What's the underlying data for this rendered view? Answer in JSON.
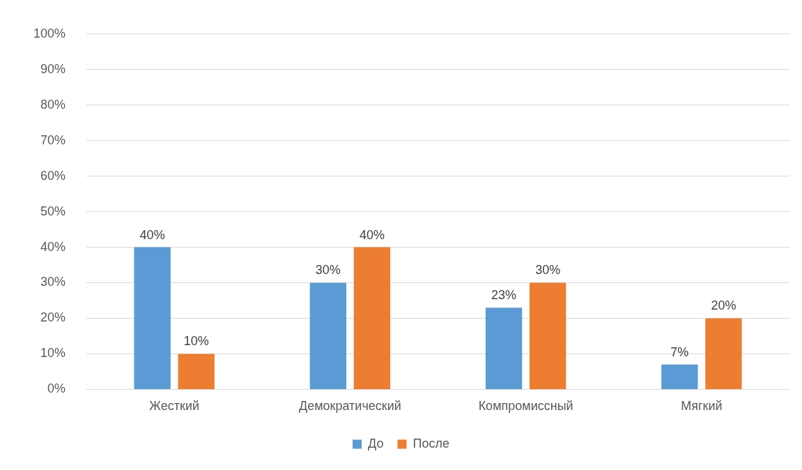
{
  "chart_data": {
    "type": "bar",
    "categories": [
      "Жесткий",
      "Демократический",
      "Компромиссный",
      "Мягкий"
    ],
    "series": [
      {
        "name": "До",
        "color": "#5b9bd5",
        "values": [
          40,
          30,
          23,
          7
        ],
        "value_labels": [
          "40%",
          "30%",
          "23%",
          "7%"
        ]
      },
      {
        "name": "После",
        "color": "#ed7d31",
        "values": [
          10,
          40,
          30,
          20
        ],
        "value_labels": [
          "10%",
          "40%",
          "30%",
          "20%"
        ]
      }
    ],
    "ylim": [
      0,
      100
    ],
    "yticks": [
      {
        "value": 0,
        "label": "0%"
      },
      {
        "value": 10,
        "label": "10%"
      },
      {
        "value": 20,
        "label": "20%"
      },
      {
        "value": 30,
        "label": "30%"
      },
      {
        "value": 40,
        "label": "40%"
      },
      {
        "value": 50,
        "label": "50%"
      },
      {
        "value": 60,
        "label": "60%"
      },
      {
        "value": 70,
        "label": "70%"
      },
      {
        "value": 80,
        "label": "80%"
      },
      {
        "value": 90,
        "label": "90%"
      },
      {
        "value": 100,
        "label": "100%"
      }
    ],
    "grid": "y",
    "legend": "bottom"
  }
}
